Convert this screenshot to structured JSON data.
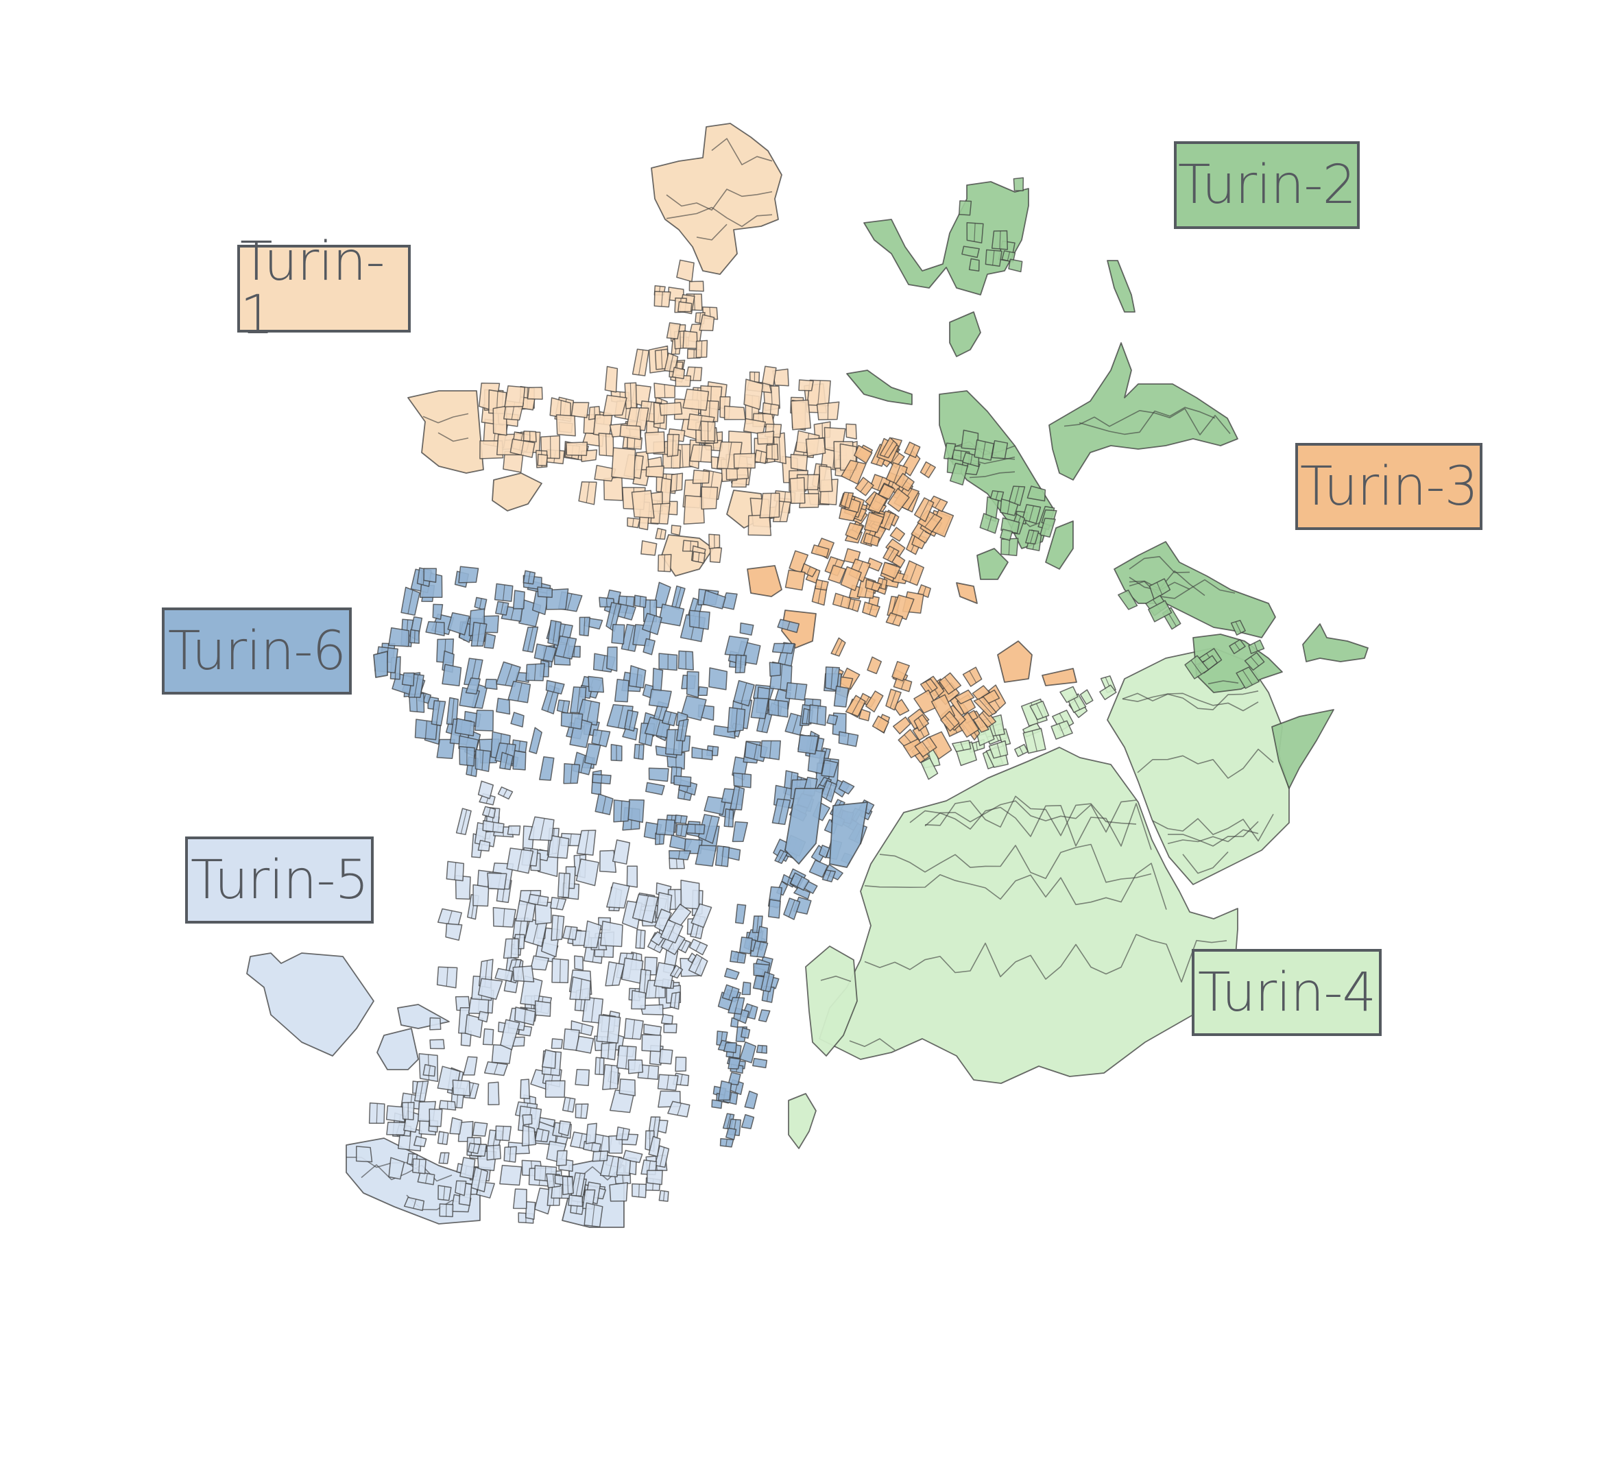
{
  "districts": [
    {
      "id": "turin-1",
      "label": "Turin-1",
      "color": "#f8dcbc",
      "icon": "district-1-parcels"
    },
    {
      "id": "turin-2",
      "label": "Turin-2",
      "color": "#9ccc99",
      "icon": "district-2-parcels"
    },
    {
      "id": "turin-3",
      "label": "Turin-3",
      "color": "#f4bf8c",
      "icon": "district-3-parcels"
    },
    {
      "id": "turin-4",
      "label": "Turin-4",
      "color": "#d2eeca",
      "icon": "district-4-parcels"
    },
    {
      "id": "turin-5",
      "label": "Turin-5",
      "color": "#d5e1f1",
      "icon": "district-5-parcels"
    },
    {
      "id": "turin-6",
      "label": "Turin-6",
      "color": "#93b4d4",
      "icon": "district-6-parcels"
    }
  ],
  "map": {
    "outline_color": "#3a3a3a",
    "background": "#ffffff"
  }
}
